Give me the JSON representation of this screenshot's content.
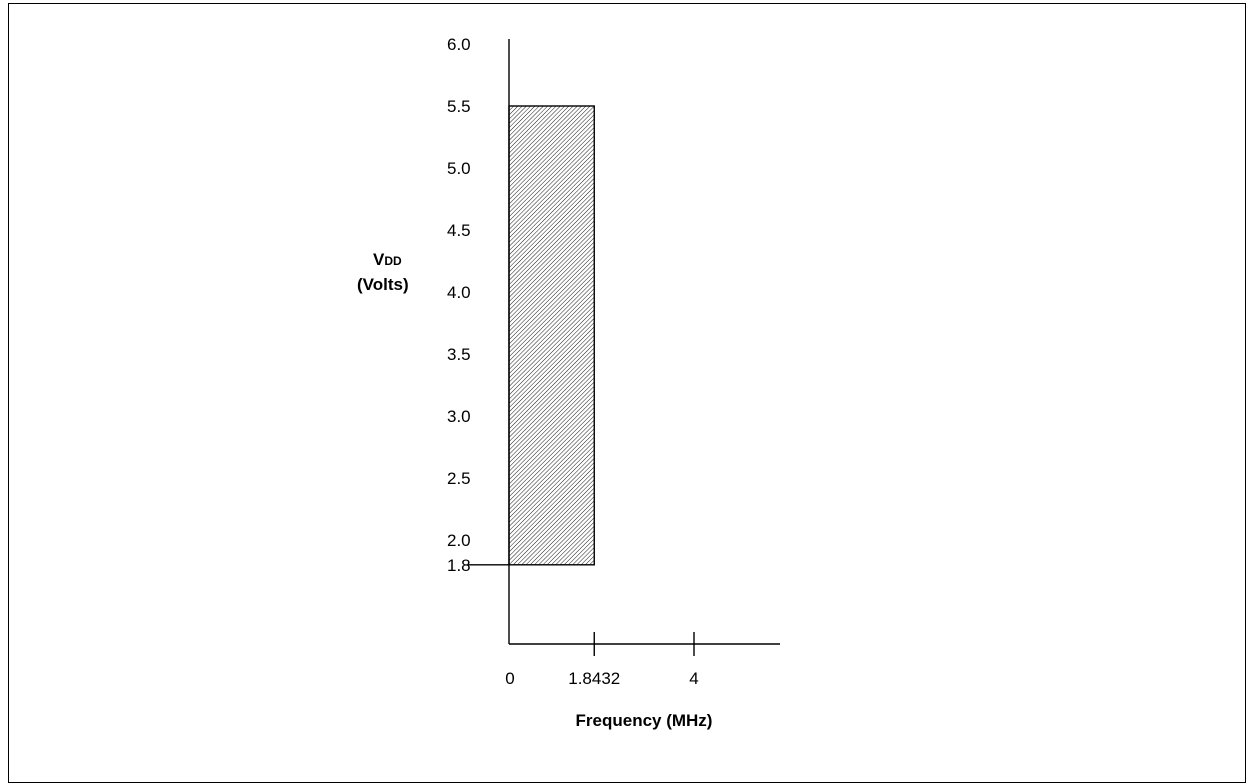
{
  "chart_data": {
    "type": "area",
    "title": "",
    "xlabel": "Frequency (MHz)",
    "ylabel_main": "V",
    "ylabel_sub": "DD",
    "ylabel_unit": "(Volts)",
    "xlim": [
      0,
      5.2
    ],
    "ylim": [
      1.5,
      6.0
    ],
    "x_ticks": [
      {
        "value": 0,
        "label": "0"
      },
      {
        "value": 1.8432,
        "label": "1.8432"
      },
      {
        "value": 4,
        "label": "4"
      }
    ],
    "y_ticks": [
      {
        "value": 6.0,
        "label": "6.0"
      },
      {
        "value": 5.5,
        "label": "5.5"
      },
      {
        "value": 5.0,
        "label": "5.0"
      },
      {
        "value": 4.5,
        "label": "4.5"
      },
      {
        "value": 4.0,
        "label": "4.0"
      },
      {
        "value": 3.5,
        "label": "3.5"
      },
      {
        "value": 3.0,
        "label": "3.0"
      },
      {
        "value": 2.5,
        "label": "2.5"
      },
      {
        "value": 2.0,
        "label": "2.0"
      },
      {
        "value": 1.8,
        "label": "1.8"
      }
    ],
    "region": {
      "x_min": 0,
      "x_max": 1.8432,
      "y_min": 1.8,
      "y_max": 5.5,
      "fill": "hatched"
    },
    "grid": false,
    "colors": {
      "line": "#000000",
      "hatch": "#000000",
      "background": "#ffffff"
    }
  }
}
